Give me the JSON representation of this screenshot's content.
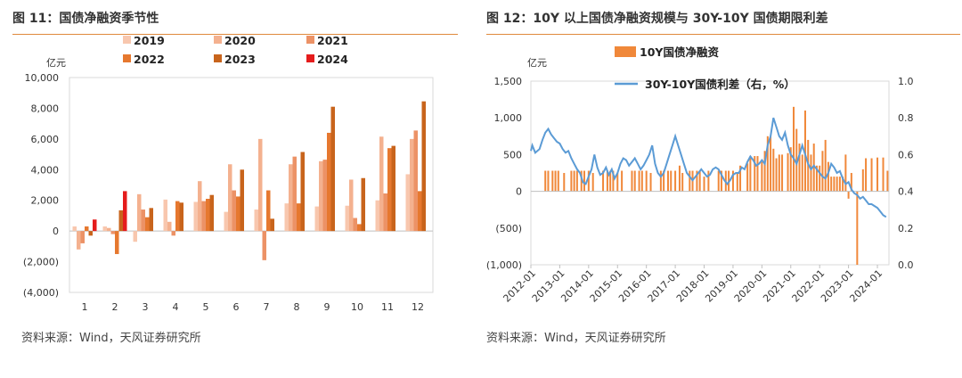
{
  "left": {
    "title": "图 11：国债净融资季节性",
    "source": "资料来源：Wind，天风证券研究所",
    "chart_data": {
      "type": "bar",
      "ylabel": "亿元",
      "ylim": [
        -4000,
        10000
      ],
      "yticks": [
        -4000,
        -2000,
        0,
        2000,
        4000,
        6000,
        8000,
        10000
      ],
      "ytick_labels": [
        "(4,000)",
        "(2,000)",
        "0",
        "2,000",
        "4,000",
        "6,000",
        "8,000",
        "10,000"
      ],
      "categories": [
        "1",
        "2",
        "3",
        "4",
        "5",
        "6",
        "7",
        "8",
        "9",
        "10",
        "11",
        "12"
      ],
      "legend_position": "top",
      "series": [
        {
          "name": "2019",
          "color": "#f8c7ae",
          "values": [
            300,
            300,
            -700,
            2050,
            1900,
            1250,
            1400,
            1800,
            1600,
            1650,
            2000,
            3700
          ]
        },
        {
          "name": "2020",
          "color": "#f4b18f",
          "values": [
            -1200,
            200,
            2400,
            600,
            3250,
            4350,
            6000,
            4350,
            4550,
            3350,
            6150,
            6000
          ]
        },
        {
          "name": "2021",
          "color": "#ec9266",
          "values": [
            -800,
            -200,
            1400,
            -300,
            1950,
            2650,
            -1900,
            4850,
            4650,
            850,
            2450,
            6550
          ]
        },
        {
          "name": "2022",
          "color": "#e6782f",
          "values": [
            300,
            -1500,
            900,
            1950,
            2100,
            2250,
            2650,
            1800,
            6400,
            450,
            5400,
            2600
          ]
        },
        {
          "name": "2023",
          "color": "#c8641c",
          "values": [
            -300,
            1350,
            1500,
            1850,
            2350,
            4000,
            800,
            5150,
            8100,
            3450,
            5550,
            8450
          ]
        },
        {
          "name": "2024",
          "color": "#e51c1c",
          "values": [
            750,
            2600,
            null,
            null,
            null,
            null,
            null,
            null,
            null,
            null,
            null,
            null
          ]
        }
      ]
    }
  },
  "right": {
    "title": "图 12：10Y 以上国债净融资规模与 30Y-10Y 国债期限利差",
    "source": "资料来源：Wind，天风证券研究所",
    "chart_data": {
      "type": "bar+line",
      "ylabel": "亿元",
      "ylim": [
        -1000,
        1500
      ],
      "yticks": [
        -1000,
        -500,
        0,
        500,
        1000,
        1500
      ],
      "ytick_labels": [
        "(1,000)",
        "(500)",
        "0",
        "500",
        "1,000",
        "1,500"
      ],
      "y2lim": [
        0,
        1.0
      ],
      "y2ticks": [
        0,
        0.2,
        0.4,
        0.6,
        0.8,
        1.0
      ],
      "y2tick_labels": [
        "0.0",
        "0.2",
        "0.4",
        "0.6",
        "0.8",
        "1.0"
      ],
      "x_range": [
        2012.0,
        2024.4
      ],
      "xtick_labels": [
        "2012-01",
        "2013-01",
        "2014-01",
        "2015-01",
        "2016-01",
        "2017-01",
        "2018-01",
        "2019-01",
        "2020-01",
        "2021-01",
        "2022-01",
        "2023-01",
        "2024-01"
      ],
      "legend_position": "top",
      "bar_series": {
        "name": "10Y国债净融资",
        "color": "#f0883a",
        "points": [
          [
            2012.5,
            280
          ],
          [
            2012.6,
            280
          ],
          [
            2012.75,
            280
          ],
          [
            2012.85,
            280
          ],
          [
            2012.95,
            280
          ],
          [
            2013.15,
            250
          ],
          [
            2013.4,
            280
          ],
          [
            2013.5,
            280
          ],
          [
            2013.6,
            280
          ],
          [
            2013.75,
            280
          ],
          [
            2013.85,
            280
          ],
          [
            2014.0,
            280
          ],
          [
            2014.15,
            250
          ],
          [
            2014.5,
            280
          ],
          [
            2014.65,
            280
          ],
          [
            2014.75,
            280
          ],
          [
            2014.85,
            280
          ],
          [
            2015.0,
            250
          ],
          [
            2015.15,
            280
          ],
          [
            2015.5,
            280
          ],
          [
            2015.6,
            280
          ],
          [
            2015.75,
            280
          ],
          [
            2015.85,
            280
          ],
          [
            2016.0,
            280
          ],
          [
            2016.15,
            250
          ],
          [
            2016.5,
            280
          ],
          [
            2016.6,
            280
          ],
          [
            2016.75,
            280
          ],
          [
            2016.85,
            280
          ],
          [
            2017.0,
            280
          ],
          [
            2017.15,
            350
          ],
          [
            2017.25,
            250
          ],
          [
            2017.5,
            280
          ],
          [
            2017.6,
            280
          ],
          [
            2017.75,
            280
          ],
          [
            2017.85,
            280
          ],
          [
            2018.0,
            200
          ],
          [
            2018.15,
            280
          ],
          [
            2018.5,
            280
          ],
          [
            2018.6,
            280
          ],
          [
            2018.75,
            280
          ],
          [
            2018.85,
            280
          ],
          [
            2019.0,
            280
          ],
          [
            2019.15,
            250
          ],
          [
            2019.25,
            350
          ],
          [
            2019.5,
            380
          ],
          [
            2019.6,
            480
          ],
          [
            2019.75,
            480
          ],
          [
            2019.85,
            480
          ],
          [
            2020.0,
            400
          ],
          [
            2020.1,
            550
          ],
          [
            2020.2,
            750
          ],
          [
            2020.3,
            750
          ],
          [
            2020.4,
            580
          ],
          [
            2020.5,
            450
          ],
          [
            2020.6,
            500
          ],
          [
            2020.7,
            500
          ],
          [
            2020.9,
            520
          ],
          [
            2021.0,
            600
          ],
          [
            2021.1,
            1150
          ],
          [
            2021.2,
            850
          ],
          [
            2021.3,
            650
          ],
          [
            2021.4,
            500
          ],
          [
            2021.5,
            1100
          ],
          [
            2021.6,
            700
          ],
          [
            2021.7,
            500
          ],
          [
            2021.8,
            650
          ],
          [
            2021.9,
            350
          ],
          [
            2022.0,
            350
          ],
          [
            2022.1,
            550
          ],
          [
            2022.2,
            700
          ],
          [
            2022.3,
            400
          ],
          [
            2022.4,
            200
          ],
          [
            2022.5,
            200
          ],
          [
            2022.6,
            200
          ],
          [
            2022.7,
            200
          ],
          [
            2022.8,
            200
          ],
          [
            2022.9,
            500
          ],
          [
            2023.0,
            -100
          ],
          [
            2023.1,
            250
          ],
          [
            2023.3,
            -1000
          ],
          [
            2023.5,
            300
          ],
          [
            2023.6,
            450
          ],
          [
            2023.8,
            450
          ],
          [
            2024.0,
            460
          ],
          [
            2024.2,
            460
          ],
          [
            2024.35,
            280
          ]
        ]
      },
      "line_series": {
        "name": "30Y-10Y国债利差（右，%）",
        "color": "#5b9bd5",
        "points": [
          [
            2012.0,
            0.62
          ],
          [
            2012.05,
            0.65
          ],
          [
            2012.15,
            0.61
          ],
          [
            2012.3,
            0.63
          ],
          [
            2012.4,
            0.68
          ],
          [
            2012.5,
            0.72
          ],
          [
            2012.6,
            0.74
          ],
          [
            2012.7,
            0.71
          ],
          [
            2012.8,
            0.69
          ],
          [
            2012.9,
            0.67
          ],
          [
            2013.0,
            0.66
          ],
          [
            2013.1,
            0.63
          ],
          [
            2013.2,
            0.61
          ],
          [
            2013.3,
            0.62
          ],
          [
            2013.4,
            0.58
          ],
          [
            2013.5,
            0.55
          ],
          [
            2013.6,
            0.52
          ],
          [
            2013.7,
            0.5
          ],
          [
            2013.8,
            0.45
          ],
          [
            2013.9,
            0.44
          ],
          [
            2014.0,
            0.48
          ],
          [
            2014.1,
            0.52
          ],
          [
            2014.2,
            0.6
          ],
          [
            2014.3,
            0.53
          ],
          [
            2014.4,
            0.49
          ],
          [
            2014.5,
            0.5
          ],
          [
            2014.6,
            0.53
          ],
          [
            2014.7,
            0.49
          ],
          [
            2014.8,
            0.52
          ],
          [
            2014.9,
            0.47
          ],
          [
            2015.0,
            0.5
          ],
          [
            2015.1,
            0.55
          ],
          [
            2015.2,
            0.58
          ],
          [
            2015.3,
            0.57
          ],
          [
            2015.4,
            0.54
          ],
          [
            2015.5,
            0.56
          ],
          [
            2015.6,
            0.58
          ],
          [
            2015.7,
            0.55
          ],
          [
            2015.8,
            0.52
          ],
          [
            2015.9,
            0.54
          ],
          [
            2016.0,
            0.57
          ],
          [
            2016.1,
            0.6
          ],
          [
            2016.2,
            0.65
          ],
          [
            2016.3,
            0.55
          ],
          [
            2016.4,
            0.5
          ],
          [
            2016.5,
            0.48
          ],
          [
            2016.6,
            0.5
          ],
          [
            2016.7,
            0.55
          ],
          [
            2016.8,
            0.6
          ],
          [
            2016.9,
            0.65
          ],
          [
            2017.0,
            0.7
          ],
          [
            2017.1,
            0.65
          ],
          [
            2017.2,
            0.6
          ],
          [
            2017.3,
            0.55
          ],
          [
            2017.4,
            0.5
          ],
          [
            2017.5,
            0.48
          ],
          [
            2017.6,
            0.46
          ],
          [
            2017.7,
            0.48
          ],
          [
            2017.8,
            0.5
          ],
          [
            2017.9,
            0.52
          ],
          [
            2018.0,
            0.5
          ],
          [
            2018.1,
            0.48
          ],
          [
            2018.2,
            0.49
          ],
          [
            2018.3,
            0.52
          ],
          [
            2018.4,
            0.53
          ],
          [
            2018.5,
            0.52
          ],
          [
            2018.6,
            0.49
          ],
          [
            2018.7,
            0.46
          ],
          [
            2018.8,
            0.44
          ],
          [
            2018.9,
            0.46
          ],
          [
            2019.0,
            0.49
          ],
          [
            2019.1,
            0.5
          ],
          [
            2019.2,
            0.5
          ],
          [
            2019.3,
            0.53
          ],
          [
            2019.4,
            0.52
          ],
          [
            2019.5,
            0.56
          ],
          [
            2019.6,
            0.59
          ],
          [
            2019.7,
            0.57
          ],
          [
            2019.8,
            0.54
          ],
          [
            2019.9,
            0.55
          ],
          [
            2020.0,
            0.57
          ],
          [
            2020.1,
            0.55
          ],
          [
            2020.2,
            0.65
          ],
          [
            2020.3,
            0.7
          ],
          [
            2020.4,
            0.8
          ],
          [
            2020.5,
            0.75
          ],
          [
            2020.6,
            0.7
          ],
          [
            2020.7,
            0.68
          ],
          [
            2020.8,
            0.72
          ],
          [
            2020.9,
            0.65
          ],
          [
            2021.0,
            0.6
          ],
          [
            2021.1,
            0.58
          ],
          [
            2021.2,
            0.55
          ],
          [
            2021.3,
            0.6
          ],
          [
            2021.4,
            0.65
          ],
          [
            2021.5,
            0.6
          ],
          [
            2021.6,
            0.55
          ],
          [
            2021.7,
            0.52
          ],
          [
            2021.8,
            0.54
          ],
          [
            2021.9,
            0.52
          ],
          [
            2022.0,
            0.5
          ],
          [
            2022.1,
            0.48
          ],
          [
            2022.2,
            0.47
          ],
          [
            2022.3,
            0.5
          ],
          [
            2022.4,
            0.55
          ],
          [
            2022.5,
            0.53
          ],
          [
            2022.6,
            0.5
          ],
          [
            2022.7,
            0.51
          ],
          [
            2022.8,
            0.47
          ],
          [
            2022.9,
            0.44
          ],
          [
            2023.0,
            0.45
          ],
          [
            2023.1,
            0.41
          ],
          [
            2023.2,
            0.39
          ],
          [
            2023.3,
            0.38
          ],
          [
            2023.4,
            0.36
          ],
          [
            2023.5,
            0.37
          ],
          [
            2023.6,
            0.35
          ],
          [
            2023.7,
            0.33
          ],
          [
            2023.8,
            0.33
          ],
          [
            2023.9,
            0.32
          ],
          [
            2024.0,
            0.31
          ],
          [
            2024.1,
            0.29
          ],
          [
            2024.2,
            0.27
          ],
          [
            2024.3,
            0.26
          ]
        ]
      }
    }
  }
}
